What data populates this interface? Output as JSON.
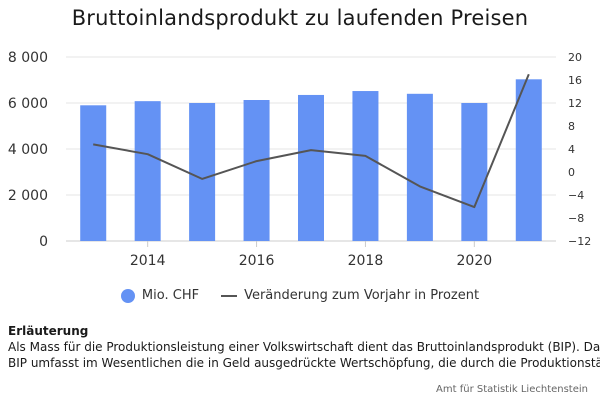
{
  "chart_data": {
    "type": "bar",
    "title": "Bruttoinlandsprodukt zu laufenden Preisen",
    "x": [
      2013,
      2014,
      2015,
      2016,
      2017,
      2018,
      2019,
      2020,
      2021
    ],
    "x_ticks": [
      2014,
      2016,
      2018,
      2020
    ],
    "series": [
      {
        "name": "Mio. CHF",
        "type": "bar",
        "axis": "left",
        "color": "#6492f4",
        "values": [
          5900,
          6080,
          6000,
          6130,
          6350,
          6520,
          6400,
          6000,
          7030
        ]
      },
      {
        "name": "Veränderung zum Vorjahr in Prozent",
        "type": "line",
        "axis": "right",
        "color": "#555555",
        "values": [
          4.8,
          3.1,
          -1.2,
          1.9,
          3.8,
          2.8,
          -2.5,
          -6.1,
          17.0
        ]
      }
    ],
    "y_left": {
      "range": [
        0,
        8000
      ],
      "ticks": [
        0,
        2000,
        4000,
        6000,
        8000
      ],
      "tick_labels": [
        "0",
        "2 000",
        "4 000",
        "6 000",
        "8 000"
      ]
    },
    "y_right": {
      "range": [
        -12,
        20
      ],
      "ticks": [
        -12,
        -8,
        -4,
        0,
        4,
        8,
        12,
        16,
        20
      ],
      "tick_labels": [
        "−12",
        "−8",
        "−4",
        "0",
        "4",
        "8",
        "12",
        "16",
        "20"
      ]
    },
    "grid": true,
    "legend_position": "bottom"
  },
  "legend": {
    "bar_label": "Mio. CHF",
    "line_label": "Veränderung zum Vorjahr in Prozent"
  },
  "notes": {
    "heading": "Erläuterung",
    "line1": "Als Mass für die Produktionsleistung einer Volkswirtschaft dient das Bruttoinlandsprodukt (BIP). Das",
    "line2": "BIP umfasst im Wesentlichen die in Geld ausgedrückte Wertschöpfung, die durch die Produktionstätig"
  },
  "source": "Amt für Statistik Liechtenstein"
}
